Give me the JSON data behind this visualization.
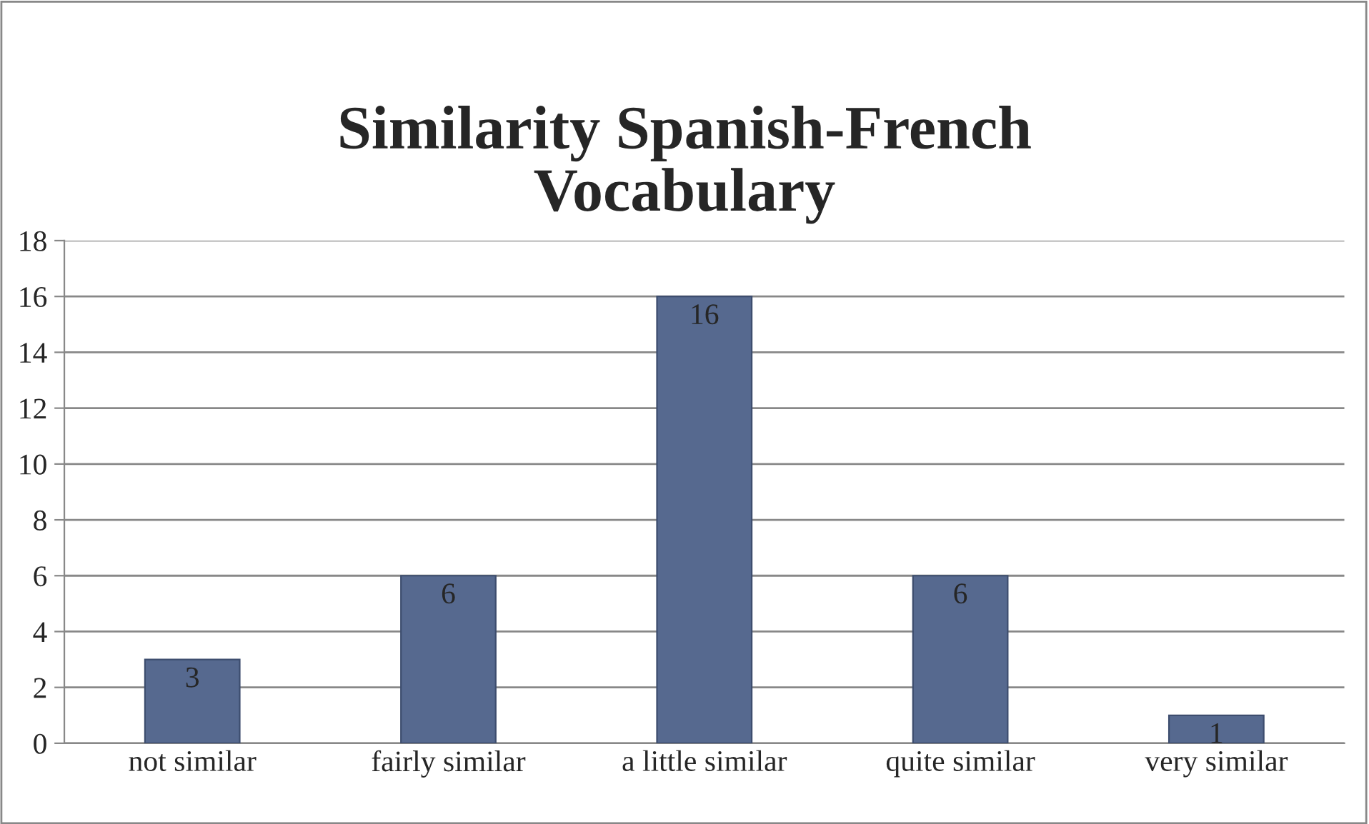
{
  "chart_data": {
    "type": "bar",
    "title": "Similarity Spanish-French\nVocabulary",
    "categories": [
      "not similar",
      "fairly similar",
      "a little similar",
      "quite similar",
      "very similar"
    ],
    "values": [
      3,
      6,
      16,
      6,
      1
    ],
    "color": "#56698f",
    "ylim": [
      0,
      18
    ],
    "yticks": [
      0,
      2,
      4,
      6,
      8,
      10,
      12,
      14,
      16,
      18
    ],
    "grid": "y",
    "data_labels": true
  }
}
